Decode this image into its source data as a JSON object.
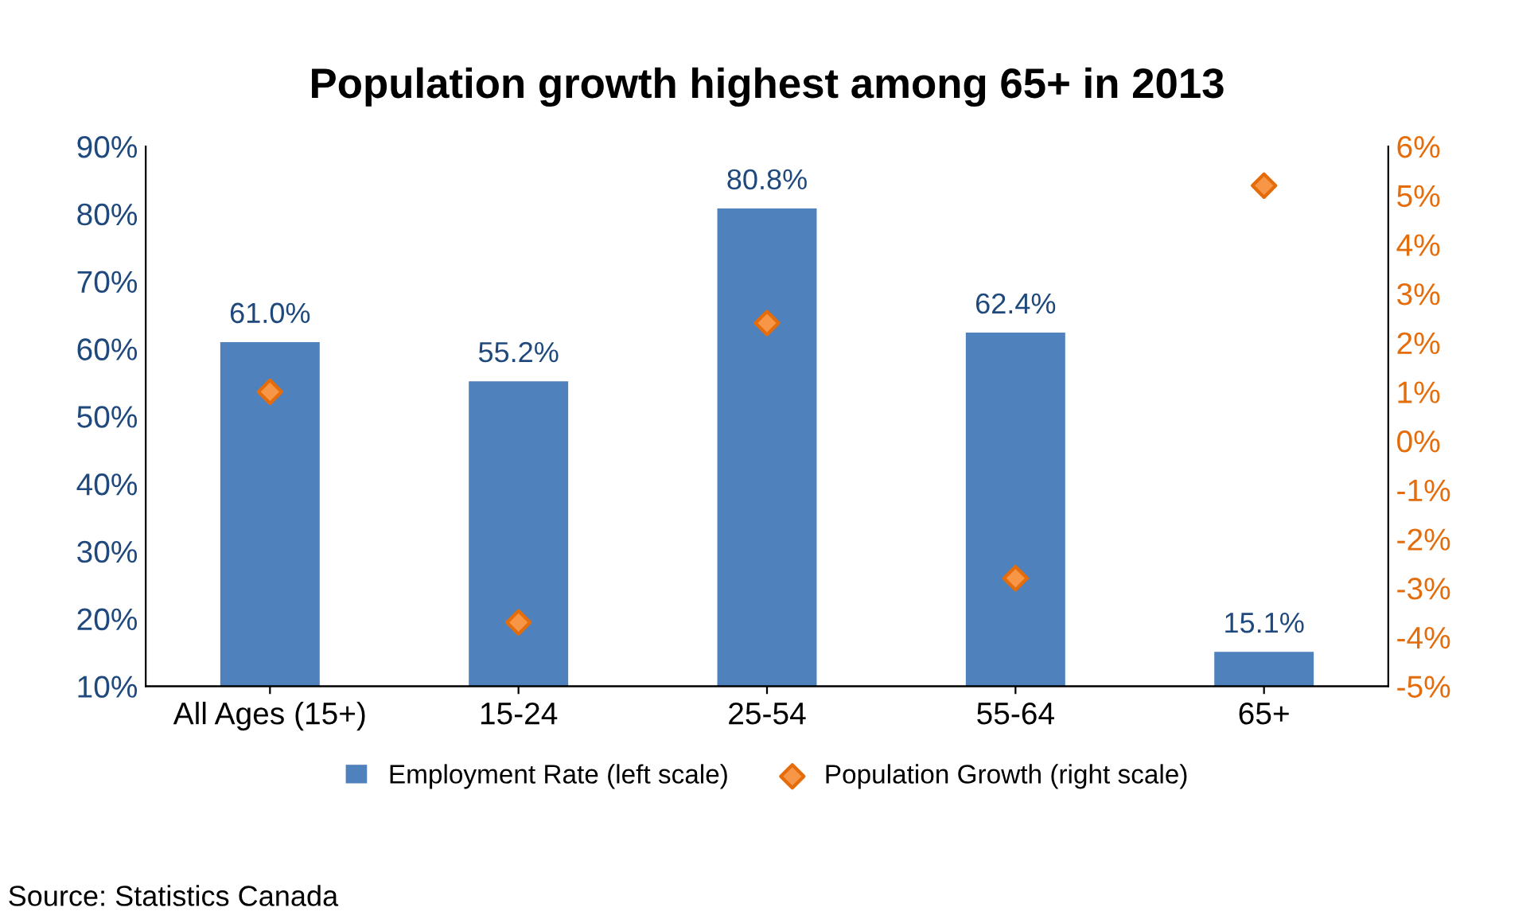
{
  "chart_data": {
    "type": "bar",
    "title": "Population growth highest among 65+ in 2013",
    "categories": [
      "All Ages (15+)",
      "15-24",
      "25-54",
      "55-64",
      "65+"
    ],
    "series": [
      {
        "name": "Employment Rate (left scale)",
        "color": "#4f81bd",
        "values": [
          61.0,
          55.2,
          80.8,
          62.4,
          15.1
        ],
        "value_labels": [
          "61.0%",
          "55.2%",
          "80.8%",
          "62.4%",
          "15.1%"
        ]
      },
      {
        "name": "Population Growth (right scale)",
        "type": "scatter",
        "axis": "y2",
        "color": "#f79646",
        "marker": "diamond",
        "values": [
          1.0,
          -3.7,
          2.4,
          -2.8,
          5.2
        ]
      }
    ],
    "ylim": [
      10,
      90
    ],
    "yticks": [
      {
        "value": 10,
        "label": "10%"
      },
      {
        "value": 20,
        "label": "20%"
      },
      {
        "value": 30,
        "label": "30%"
      },
      {
        "value": 40,
        "label": "40%"
      },
      {
        "value": 50,
        "label": "50%"
      },
      {
        "value": 60,
        "label": "60%"
      },
      {
        "value": 70,
        "label": "70%"
      },
      {
        "value": 80,
        "label": "80%"
      },
      {
        "value": 90,
        "label": "90%"
      }
    ],
    "y2lim": [
      -5,
      6
    ],
    "y2ticks": [
      {
        "value": -5,
        "label": "-5%"
      },
      {
        "value": -4,
        "label": "-4%"
      },
      {
        "value": -3,
        "label": "-3%"
      },
      {
        "value": -2,
        "label": "-2%"
      },
      {
        "value": -1,
        "label": "-1%"
      },
      {
        "value": 0,
        "label": "0%"
      },
      {
        "value": 1,
        "label": "1%"
      },
      {
        "value": 2,
        "label": "2%"
      },
      {
        "value": 3,
        "label": "3%"
      },
      {
        "value": 4,
        "label": "4%"
      },
      {
        "value": 5,
        "label": "5%"
      },
      {
        "value": 6,
        "label": "6%"
      }
    ],
    "legend": "bottom",
    "grid": false,
    "annotations": [
      "Source: Statistics Canada"
    ]
  }
}
